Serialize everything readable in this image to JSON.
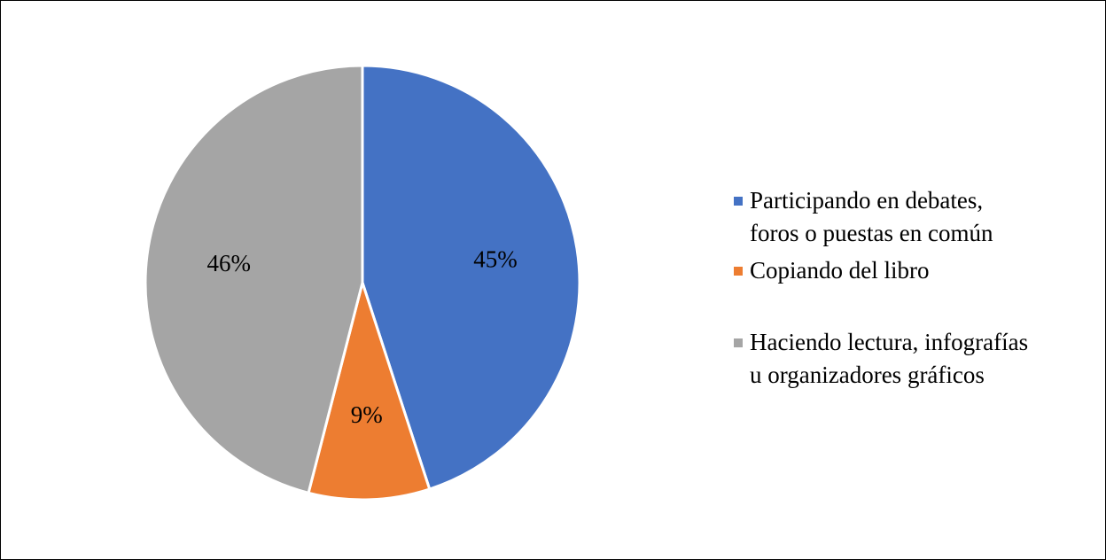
{
  "chart_data": {
    "type": "pie",
    "categories": [
      "Participando en debates,\nforos o puestas en común",
      "Copiando del libro",
      "Haciendo lectura, infografías\nu organizadores gráficos"
    ],
    "values": [
      45,
      9,
      46
    ],
    "value_labels": [
      "45%",
      "9%",
      "46%"
    ],
    "colors": [
      "#4472c4",
      "#ed7d31",
      "#a5a5a5"
    ],
    "legend": "right"
  }
}
